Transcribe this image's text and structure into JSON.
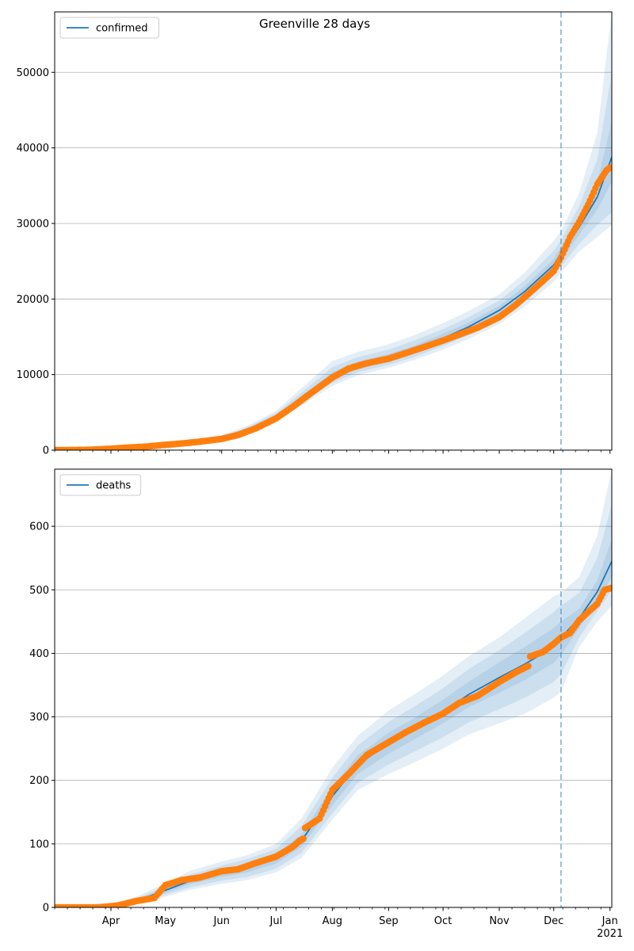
{
  "figure": {
    "title": "Greenville 28 days"
  },
  "colors": {
    "line": "#1f77b4",
    "points": "#ff7f0e",
    "band": "#1f77b4",
    "grid": "#b0b0b0",
    "forecast_line": "#1f77b4"
  },
  "x_axis": {
    "start": "2020-03-01",
    "end": "2021-01-02",
    "major_ticks": [
      {
        "date": "2020-04-01",
        "label": "Apr"
      },
      {
        "date": "2020-05-01",
        "label": "May"
      },
      {
        "date": "2020-06-01",
        "label": "Jun"
      },
      {
        "date": "2020-07-01",
        "label": "Jul"
      },
      {
        "date": "2020-08-01",
        "label": "Aug"
      },
      {
        "date": "2020-09-01",
        "label": "Sep"
      },
      {
        "date": "2020-10-01",
        "label": "Oct"
      },
      {
        "date": "2020-11-01",
        "label": "Nov"
      },
      {
        "date": "2020-12-01",
        "label": "Dec"
      },
      {
        "date": "2021-01-01",
        "label": "Jan"
      }
    ],
    "year_label": "2021",
    "forecast_start": "2020-12-05"
  },
  "chart_data": [
    {
      "type": "line",
      "name": "confirmed",
      "legend": "confirmed",
      "legend_position": "upper-left",
      "ylim": [
        0,
        58000
      ],
      "yticks": [
        0,
        10000,
        20000,
        30000,
        40000,
        50000
      ],
      "grid": "horizontal",
      "model_line": [
        [
          "2020-03-01",
          0
        ],
        [
          "2020-03-15",
          80
        ],
        [
          "2020-04-01",
          300
        ],
        [
          "2020-04-15",
          500
        ],
        [
          "2020-05-01",
          750
        ],
        [
          "2020-05-15",
          1050
        ],
        [
          "2020-06-01",
          1700
        ],
        [
          "2020-06-15",
          2700
        ],
        [
          "2020-07-01",
          4400
        ],
        [
          "2020-07-15",
          6800
        ],
        [
          "2020-08-01",
          9600
        ],
        [
          "2020-08-15",
          11000
        ],
        [
          "2020-09-01",
          12100
        ],
        [
          "2020-09-15",
          13200
        ],
        [
          "2020-10-01",
          14800
        ],
        [
          "2020-10-15",
          16300
        ],
        [
          "2020-11-01",
          18500
        ],
        [
          "2020-11-15",
          21000
        ],
        [
          "2020-12-01",
          24500
        ],
        [
          "2020-12-05",
          26000
        ],
        [
          "2020-12-15",
          29500
        ],
        [
          "2020-12-25",
          33500
        ],
        [
          "2021-01-02",
          38800
        ]
      ],
      "bands": [
        {
          "level": "95%",
          "lower": [
            0,
            50,
            220,
            400,
            600,
            850,
            1450,
            2300,
            3800,
            5900,
            8500,
            9900,
            10900,
            11900,
            13300,
            14700,
            16700,
            19000,
            22300,
            23500,
            26300,
            28200,
            29800
          ],
          "upper": [
            0,
            120,
            400,
            650,
            950,
            1300,
            2000,
            3200,
            5200,
            8200,
            11800,
            13000,
            14000,
            15200,
            16800,
            18400,
            20600,
            23500,
            27700,
            29000,
            34000,
            42000,
            58000
          ]
        },
        {
          "level": "80%",
          "lower": [
            0,
            60,
            250,
            440,
            650,
            920,
            1530,
            2450,
            4000,
            6200,
            8900,
            10300,
            11300,
            12300,
            13800,
            15200,
            17300,
            19700,
            23100,
            24300,
            27300,
            29800,
            31500
          ],
          "upper": [
            0,
            105,
            360,
            590,
            870,
            1200,
            1880,
            3000,
            4900,
            7600,
            11000,
            12300,
            13300,
            14500,
            16000,
            17600,
            19800,
            22500,
            26400,
            27800,
            32300,
            38500,
            50000
          ]
        },
        {
          "level": "50%",
          "lower": [
            0,
            70,
            275,
            470,
            700,
            990,
            1620,
            2580,
            4200,
            6500,
            9300,
            10700,
            11700,
            12800,
            14300,
            15800,
            17900,
            20300,
            23800,
            25100,
            28500,
            31800,
            35500
          ],
          "upper": [
            0,
            92,
            330,
            540,
            810,
            1120,
            1790,
            2850,
            4650,
            7200,
            10300,
            11700,
            12700,
            13800,
            15400,
            16900,
            19100,
            21700,
            25300,
            26900,
            30700,
            35500,
            43500
          ]
        }
      ],
      "observed": [
        [
          "2020-03-01",
          0
        ],
        [
          "2020-03-20",
          40
        ],
        [
          "2020-04-01",
          180
        ],
        [
          "2020-04-10",
          330
        ],
        [
          "2020-04-20",
          460
        ],
        [
          "2020-05-01",
          700
        ],
        [
          "2020-05-10",
          880
        ],
        [
          "2020-05-20",
          1120
        ],
        [
          "2020-06-01",
          1480
        ],
        [
          "2020-06-10",
          2000
        ],
        [
          "2020-06-20",
          2900
        ],
        [
          "2020-07-01",
          4200
        ],
        [
          "2020-07-10",
          5700
        ],
        [
          "2020-07-20",
          7500
        ],
        [
          "2020-08-01",
          9600
        ],
        [
          "2020-08-10",
          10800
        ],
        [
          "2020-08-20",
          11500
        ],
        [
          "2020-09-01",
          12100
        ],
        [
          "2020-09-10",
          12800
        ],
        [
          "2020-09-20",
          13600
        ],
        [
          "2020-10-01",
          14500
        ],
        [
          "2020-10-10",
          15300
        ],
        [
          "2020-10-20",
          16200
        ],
        [
          "2020-11-01",
          17600
        ],
        [
          "2020-11-10",
          19200
        ],
        [
          "2020-11-20",
          21300
        ],
        [
          "2020-12-01",
          23700
        ],
        [
          "2020-12-05",
          25500
        ],
        [
          "2020-12-10",
          28200
        ],
        [
          "2020-12-15",
          30200
        ],
        [
          "2020-12-20",
          32500
        ],
        [
          "2020-12-25",
          35200
        ],
        [
          "2020-12-30",
          37000
        ],
        [
          "2021-01-01",
          37400
        ]
      ]
    },
    {
      "type": "line",
      "name": "deaths",
      "legend": "deaths",
      "legend_position": "upper-left",
      "ylim": [
        0,
        690
      ],
      "yticks": [
        0,
        100,
        200,
        300,
        400,
        500,
        600
      ],
      "grid": "horizontal",
      "model_line": [
        [
          "2020-03-01",
          0
        ],
        [
          "2020-03-15",
          0
        ],
        [
          "2020-04-01",
          3
        ],
        [
          "2020-04-15",
          10
        ],
        [
          "2020-05-01",
          27
        ],
        [
          "2020-05-15",
          42
        ],
        [
          "2020-06-01",
          54
        ],
        [
          "2020-06-15",
          62
        ],
        [
          "2020-07-01",
          76
        ],
        [
          "2020-07-15",
          105
        ],
        [
          "2020-08-01",
          175
        ],
        [
          "2020-08-15",
          225
        ],
        [
          "2020-09-01",
          258
        ],
        [
          "2020-09-15",
          280
        ],
        [
          "2020-10-01",
          308
        ],
        [
          "2020-10-15",
          335
        ],
        [
          "2020-11-01",
          362
        ],
        [
          "2020-11-15",
          383
        ],
        [
          "2020-12-01",
          410
        ],
        [
          "2020-12-05",
          425
        ],
        [
          "2020-12-15",
          455
        ],
        [
          "2020-12-25",
          497
        ],
        [
          "2021-01-02",
          545
        ]
      ],
      "bands": [
        {
          "level": "95%",
          "lower": [
            0,
            0,
            1,
            5,
            17,
            28,
            37,
            43,
            55,
            78,
            138,
            185,
            210,
            228,
            250,
            272,
            290,
            305,
            330,
            340,
            410,
            450,
            475
          ],
          "upper": [
            0,
            0,
            6,
            17,
            38,
            58,
            72,
            82,
            100,
            140,
            220,
            270,
            310,
            335,
            365,
            395,
            425,
            455,
            490,
            495,
            520,
            585,
            690
          ]
        },
        {
          "level": "80%",
          "lower": [
            0,
            0,
            1.5,
            6,
            20,
            32,
            42,
            48,
            61,
            86,
            148,
            196,
            225,
            245,
            268,
            291,
            312,
            330,
            355,
            367,
            425,
            467,
            500
          ],
          "upper": [
            0,
            0,
            5,
            14,
            34,
            52,
            66,
            76,
            92,
            128,
            204,
            255,
            292,
            316,
            345,
            375,
            405,
            432,
            465,
            475,
            495,
            550,
            635
          ]
        },
        {
          "level": "50%",
          "lower": [
            0,
            0,
            2,
            8,
            23,
            37,
            48,
            55,
            69,
            96,
            161,
            210,
            242,
            264,
            290,
            315,
            338,
            358,
            385,
            398,
            440,
            482,
            520
          ],
          "upper": [
            0,
            0,
            4,
            12,
            30,
            47,
            60,
            69,
            84,
            115,
            190,
            240,
            275,
            298,
            327,
            355,
            386,
            410,
            440,
            450,
            470,
            515,
            580
          ]
        }
      ],
      "observed": [
        [
          "2020-03-01",
          0
        ],
        [
          "2020-03-25",
          0
        ],
        [
          "2020-04-05",
          3
        ],
        [
          "2020-04-15",
          10
        ],
        [
          "2020-04-25",
          15
        ],
        [
          "2020-05-01",
          35
        ],
        [
          "2020-05-10",
          43
        ],
        [
          "2020-05-20",
          47
        ],
        [
          "2020-06-01",
          57
        ],
        [
          "2020-06-10",
          60
        ],
        [
          "2020-06-20",
          70
        ],
        [
          "2020-07-01",
          80
        ],
        [
          "2020-07-10",
          95
        ],
        [
          "2020-07-14",
          105
        ],
        [
          "2020-07-16",
          108
        ],
        [
          "2020-07-17",
          125
        ],
        [
          "2020-07-25",
          140
        ],
        [
          "2020-08-01",
          185
        ],
        [
          "2020-08-10",
          210
        ],
        [
          "2020-08-20",
          240
        ],
        [
          "2020-09-01",
          260
        ],
        [
          "2020-09-10",
          275
        ],
        [
          "2020-09-20",
          290
        ],
        [
          "2020-10-01",
          305
        ],
        [
          "2020-10-10",
          322
        ],
        [
          "2020-10-20",
          333
        ],
        [
          "2020-11-01",
          355
        ],
        [
          "2020-11-10",
          370
        ],
        [
          "2020-11-17",
          380
        ],
        [
          "2020-11-18",
          395
        ],
        [
          "2020-11-25",
          402
        ],
        [
          "2020-12-01",
          415
        ],
        [
          "2020-12-05",
          425
        ],
        [
          "2020-12-10",
          432
        ],
        [
          "2020-12-15",
          452
        ],
        [
          "2020-12-20",
          465
        ],
        [
          "2020-12-25",
          478
        ],
        [
          "2020-12-29",
          500
        ],
        [
          "2021-01-02",
          503
        ]
      ]
    }
  ]
}
